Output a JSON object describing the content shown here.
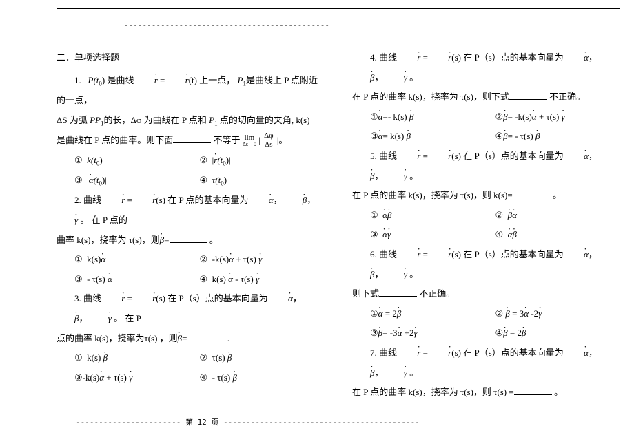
{
  "page": {
    "top_dashes": "---------------------------------------------",
    "footer": "----------------------- 第 12 页 -------------------------------------------"
  },
  "section_title": "二．单项选择题",
  "q1": {
    "line1_a": "1.",
    "line1_b": "P(t",
    "line1_sub0": "0",
    "line1_c": ") 是曲线",
    "line1_r": "r",
    "line1_eq": " = ",
    "line1_rt": "r",
    "line1_d": "(t) 上一点，",
    "line1_p1": "P",
    "line1_p1sub": "1",
    "line1_e": "是曲线上 P 点附近的一点，",
    "line2_a": "ΔS 为弧",
    "line2_pp1": "PP",
    "line2_pp1sub": "1",
    "line2_b": "的长，Δφ 为曲线在 P 点和 ",
    "line2_p1b": "P",
    "line2_p1bsub": "1",
    "line2_c": " 点的切向量的夹角, k(s)",
    "line3_a": "是曲线在 P 点的曲率。则下面",
    "line3_b": " 不等于 ",
    "lim": "lim",
    "limsub": "Δs→0",
    "bar1": "|",
    "frac_num": "Δφ",
    "frac_den": "Δs",
    "bar2": "|。",
    "opt1_n": "①",
    "opt1_t": "k(t",
    "opt1_sub": "0",
    "opt1_end": ")",
    "opt2_n": "②",
    "opt2_bar": "|",
    "opt2_r": "r",
    "opt2_t": "(t",
    "opt2_sub": "0",
    "opt2_end": ")|",
    "opt3_n": "③",
    "opt3_bar": "|",
    "opt3_a": "α",
    "opt3_t": "(t",
    "opt3_sub": "0",
    "opt3_end": ")|",
    "opt4_n": "④",
    "opt4_t": "τ(t",
    "opt4_sub": "0",
    "opt4_end": ")"
  },
  "q2": {
    "line1": "2.  曲线",
    "r1": "r",
    "eq": " = ",
    "r2": "r",
    "line1b": "(s) 在 P 点的基本向量为",
    "a": "α",
    "comma1": "，",
    "b": "β",
    "comma2": "，",
    "g": "γ",
    "line1c": " 。 在 P 点的",
    "line2a": "曲率 k(s)，挠率为 τ(s)，则",
    "bdot": "β",
    "line2b": "=",
    "period": " 。",
    "o1n": "①",
    "o1a": "k(s)",
    "o1v": "α",
    "o2n": "②",
    "o2a": "-k(s)",
    "o2v": "α",
    "o2b": " + τ(s) ",
    "o2g": "γ",
    "o3n": "③",
    "o3a": "- τ(s) ",
    "o3v": "α",
    "o4n": "④",
    "o4a": "k(s) ",
    "o4v": "α",
    "o4b": " - τ(s) ",
    "o4g": "γ"
  },
  "q3": {
    "line1": "3.  曲线",
    "r1": "r",
    "eq": " = ",
    "r2": "r",
    "line1b": "(s) 在 P（s）点的基本向量为",
    "a": "α",
    "c1": "，",
    "b": "β",
    "c2": "，",
    "g": "γ",
    "line1c": " 。 在 P",
    "line2": "点的曲率 k(s)，挠率为τ(s) ，则",
    "bdot": "β",
    "line2b": "=",
    "period": " .",
    "o1n": "①",
    "o1a": "k(s) ",
    "o1v": "β",
    "o2n": "②",
    "o2a": "τ(s) ",
    "o2v": "β",
    "o3n": "③",
    "o3a": "-k(s)",
    "o3v": "α",
    "o3b": " + τ(s) ",
    "o3g": "γ",
    "o4n": "④",
    "o4a": "- τ(s) ",
    "o4v": "β"
  },
  "q4": {
    "line1": "4.  曲线",
    "r1": "r",
    "eq": " = ",
    "r2": "r",
    "line1b": "(s) 在 P（s）点的基本向量为",
    "a": "α",
    "c1": "，",
    "b": "β",
    "c2": "，",
    "g": "γ",
    "line1c": " 。",
    "line2": "在 P 点的曲率 k(s)，挠率为 τ(s)，则下式",
    "line2b": " 不正确。",
    "o1n": "①",
    "o1lhs": "α",
    "o1eq": "=- k(s) ",
    "o1v": "β",
    "o2n": "②",
    "o2lhs": "β",
    "o2eq": "= -k(s)",
    "o2v": "α",
    "o2b": " + τ(s) ",
    "o2g": "γ",
    "o3n": "③",
    "o3lhs": "α",
    "o3eq": "= k(s) ",
    "o3v": "β",
    "o4n": "④",
    "o4lhs": "β",
    "o4eq": "= - τ(s) ",
    "o4v": "β"
  },
  "q5": {
    "line1": "5.  曲线",
    "r1": "r",
    "eq": " = ",
    "r2": "r",
    "line1b": "(s) 在 P（s）点的基本向量为",
    "a": "α",
    "c1": "，",
    "b": "β",
    "c2": "，",
    "g": "γ",
    "line1c": " 。",
    "line2": "在 P 点的曲率 k(s)，挠率为 τ(s)，则 k(s)=",
    "period": " 。",
    "o1n": "①",
    "o1a": "α",
    "o1b": "β",
    "o2n": "②",
    "o2a": "β",
    "o2b": "α",
    "o3n": "③",
    "o3a": "α",
    "o3b": "γ",
    "o4n": "④",
    "o4a": "α",
    "o4b": "β"
  },
  "q6": {
    "line1": "6.  曲线",
    "r1": "r",
    "eq": " = ",
    "r2": "r",
    "line1b": "(s) 在 P（s）点的基本向量为",
    "a": "α",
    "c1": "，",
    "b": "β",
    "c2": "，",
    "g": "γ",
    "line1c": " 。",
    "line2": "则下式",
    "line2b": " 不正确。",
    "o1n": "①",
    "o1lhs": "α",
    "o1eq": " = 2",
    "o1v": "β",
    "o2n": "②",
    "o2lhs": "β",
    "o2eq": " = 3",
    "o2v": "α",
    "o2b": " -2",
    "o2g": "γ",
    "o3n": "③",
    "o3lhs": "β",
    "o3eq": "= -3",
    "o3v": "α",
    "o3b": " +2",
    "o3g": "γ",
    "o4n": "④",
    "o4lhs": "β",
    "o4eq": " = 2",
    "o4v": "β"
  },
  "q7": {
    "line1": "7.  曲线",
    "r1": "r",
    "eq": " = ",
    "r2": "r",
    "line1b": "(s) 在 P（s）点的基本向量为",
    "a": "α",
    "c1": "，",
    "b": "β",
    "c2": "，",
    "g": "γ",
    "line1c": " 。",
    "line2": "在 P 点的曲率 k(s)，挠率为 τ(s)，则 τ(s) =",
    "period": " 。"
  }
}
